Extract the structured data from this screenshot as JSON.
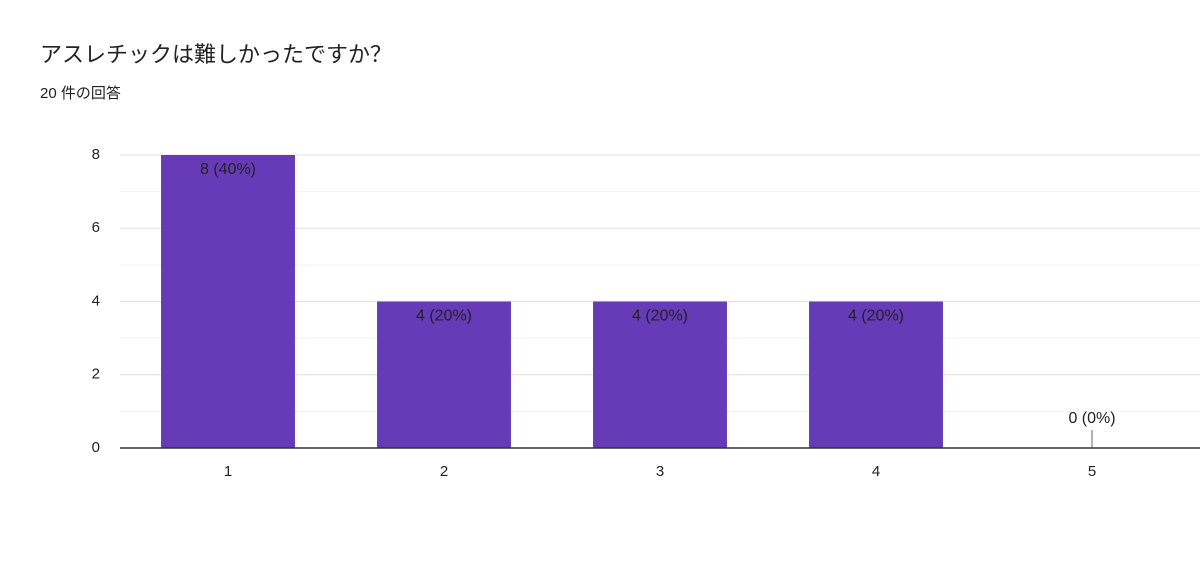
{
  "chart_data": {
    "type": "bar",
    "title": "アスレチックは難しかったですか？",
    "subtitle": "20 件の回答",
    "categories": [
      "1",
      "2",
      "3",
      "4",
      "5"
    ],
    "values": [
      8,
      4,
      4,
      4,
      0
    ],
    "value_labels": [
      "8 (40%)",
      "4 (20%)",
      "4 (20%)",
      "4 (20%)",
      "0 (0%)"
    ],
    "color": "#673ab7",
    "ylim": [
      0,
      8
    ],
    "yticks": [
      0,
      2,
      4,
      6,
      8
    ],
    "minor_yticks": [
      1,
      3,
      5,
      7
    ],
    "grid": true
  }
}
